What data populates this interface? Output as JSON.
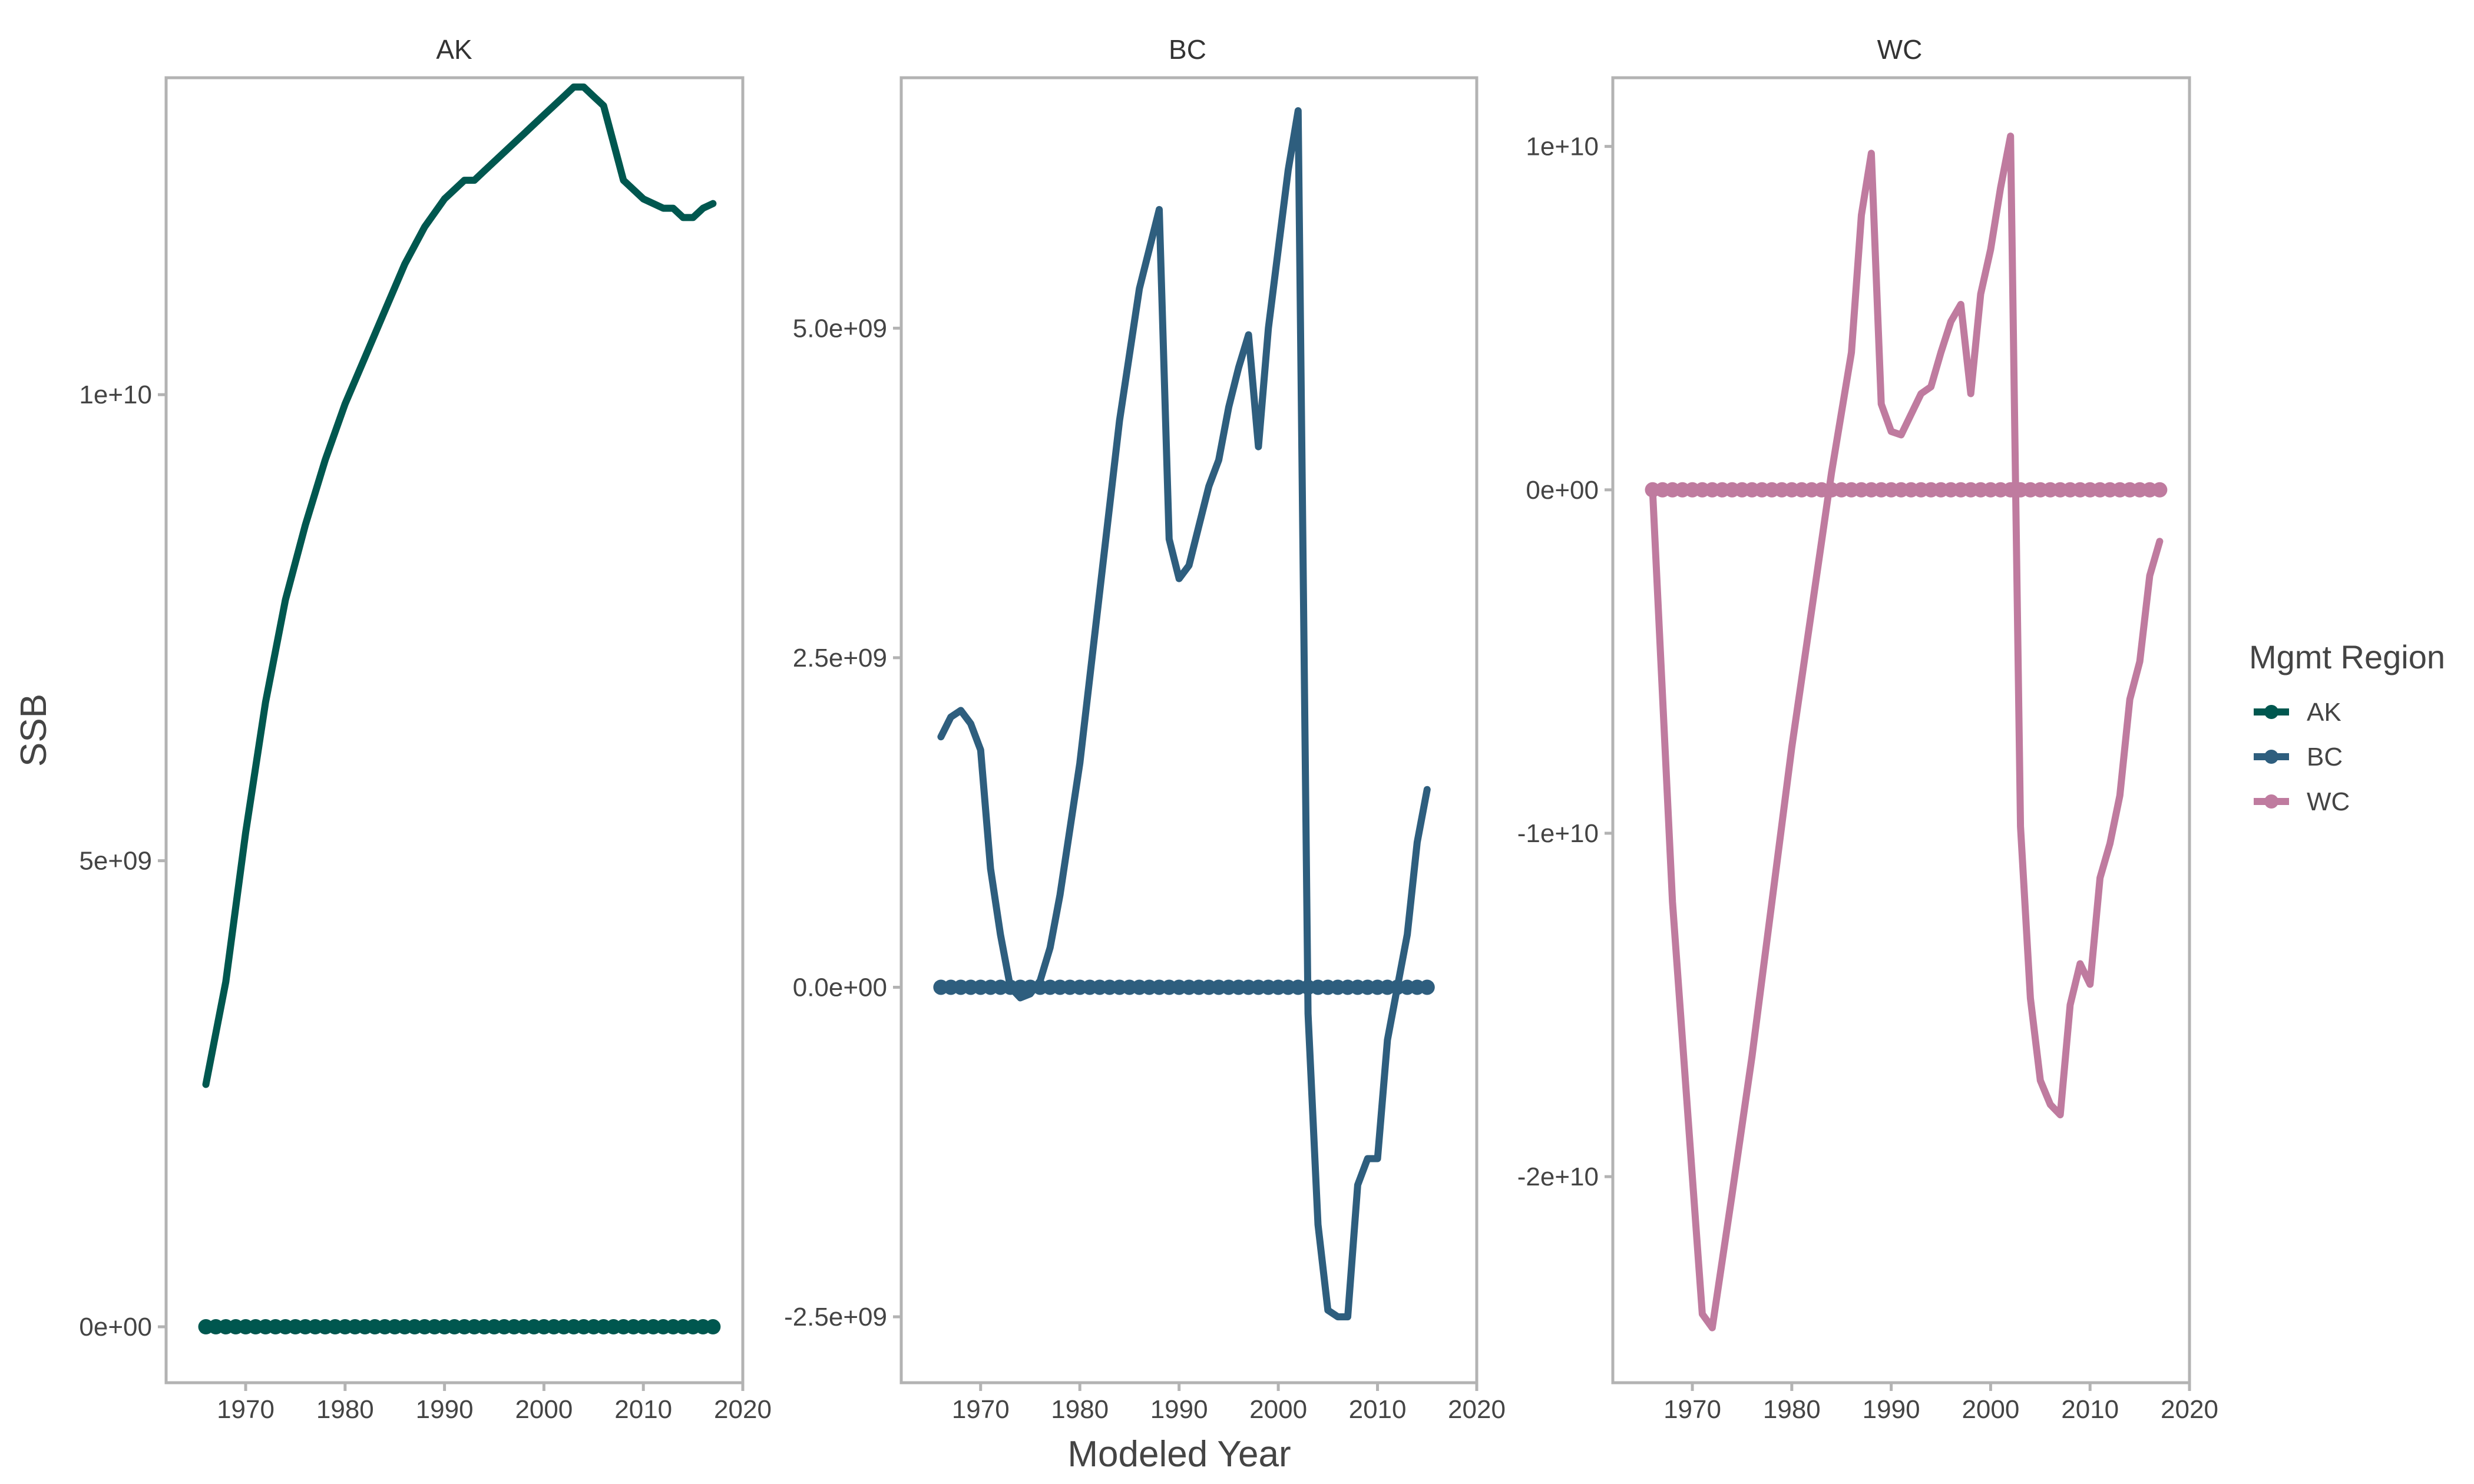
{
  "chart_data": {
    "type": "line",
    "xlabel": "Modeled Year",
    "ylabel": "SSB",
    "legend": {
      "title": "Mgmt Region",
      "position": "right",
      "entries": [
        "AK",
        "BC",
        "WC"
      ]
    },
    "colors": {
      "AK": "#00574f",
      "BC": "#2e5e7e",
      "WC": "#bf7b9f",
      "frame": "#b3b3b3"
    },
    "grid": false,
    "xlim": [
      1962,
      2020
    ],
    "xticks": [
      1970,
      1980,
      1990,
      2000,
      2010,
      2020
    ],
    "panels": [
      {
        "name": "AK",
        "ylim": [
          -600000000,
          13400000000
        ],
        "yticks": [
          0,
          5000000000,
          10000000000
        ],
        "ytick_labels": [
          "0e+00",
          "5e+09",
          "1e+10"
        ],
        "line": {
          "x": [
            1966,
            1968,
            1970,
            1972,
            1974,
            1976,
            1978,
            1980,
            1982,
            1984,
            1986,
            1988,
            1990,
            1992,
            1993,
            1994,
            1996,
            1998,
            2000,
            2002,
            2003,
            2004,
            2005,
            2006,
            2007,
            2008,
            2010,
            2012,
            2013,
            2014,
            2015,
            2016,
            2017
          ],
          "y": [
            2600000000,
            3700000000,
            5300000000,
            6700000000,
            7800000000,
            8600000000,
            9300000000,
            9900000000,
            10400000000,
            10900000000,
            11400000000,
            11800000000,
            12100000000,
            12300000000,
            12300000000,
            12400000000,
            12600000000,
            12800000000,
            13000000000,
            13200000000,
            13300000000,
            13300000000,
            13200000000,
            13100000000,
            12700000000,
            12300000000,
            12100000000,
            12000000000,
            12000000000,
            11900000000,
            11900000000,
            12000000000,
            12050000000
          ]
        },
        "points": {
          "x_start": 1966,
          "x_end": 2017,
          "y": 0
        }
      },
      {
        "name": "BC",
        "ylim": [
          -3000000000,
          6900000000
        ],
        "yticks": [
          -2500000000,
          0,
          2500000000,
          5000000000
        ],
        "ytick_labels": [
          "-2.5e+09",
          "0.0e+00",
          "2.5e+09",
          "5.0e+09"
        ],
        "line": {
          "x": [
            1966,
            1967,
            1968,
            1969,
            1970,
            1971,
            1972,
            1973,
            1974,
            1975,
            1976,
            1977,
            1978,
            1980,
            1982,
            1984,
            1986,
            1988,
            1989,
            1990,
            1991,
            1992,
            1993,
            1994,
            1995,
            1996,
            1997,
            1998,
            1999,
            2000,
            2001,
            2002,
            2003,
            2004,
            2005,
            2006,
            2007,
            2008,
            2009,
            2010,
            2011,
            2012,
            2013,
            2014,
            2015
          ],
          "y": [
            1900000000,
            2050000000,
            2100000000,
            2000000000,
            1800000000,
            900000000,
            400000000,
            0,
            -80000000,
            -50000000,
            50000000,
            300000000,
            700000000,
            1700000000,
            3000000000,
            4300000000,
            5300000000,
            5900000000,
            3400000000,
            3100000000,
            3200000000,
            3500000000,
            3800000000,
            4000000000,
            4400000000,
            4700000000,
            4950000000,
            4100000000,
            5000000000,
            5600000000,
            6200000000,
            6650000000,
            -200000000,
            -1800000000,
            -2450000000,
            -2500000000,
            -2500000000,
            -1500000000,
            -1300000000,
            -1300000000,
            -400000000,
            0,
            400000000,
            1100000000,
            1500000000
          ]
        },
        "points": {
          "x_start": 1966,
          "x_end": 2015,
          "y": 0
        }
      },
      {
        "name": "WC",
        "ylim": [
          -26000000000,
          12000000000
        ],
        "yticks": [
          -20000000000,
          -10000000000,
          0,
          10000000000
        ],
        "ytick_labels": [
          "-2e+10",
          "-1e+10",
          "0e+00",
          "1e+10"
        ],
        "line": {
          "x": [
            1966,
            1968,
            1970,
            1971,
            1972,
            1974,
            1976,
            1978,
            1980,
            1982,
            1984,
            1986,
            1987,
            1988,
            1989,
            1990,
            1991,
            1993,
            1994,
            1995,
            1996,
            1997,
            1998,
            1999,
            2000,
            2001,
            2002,
            2003,
            2004,
            2005,
            2006,
            2007,
            2008,
            2009,
            2010,
            2011,
            2012,
            2013,
            2014,
            2015,
            2016,
            2017
          ],
          "y": [
            0,
            -12000000000,
            -20000000000,
            -24000000000,
            -24400000000,
            -20500000000,
            -16500000000,
            -12000000000,
            -7500000000,
            -3500000000,
            500000000,
            4000000000,
            8000000000,
            9800000000,
            2500000000,
            1700000000,
            1600000000,
            2800000000,
            3000000000,
            4000000000,
            4900000000,
            5400000000,
            2800000000,
            5700000000,
            7000000000,
            8800000000,
            10300000000,
            -9800000000,
            -14800000000,
            -17200000000,
            -17900000000,
            -18200000000,
            -15000000000,
            -13800000000,
            -14400000000,
            -11300000000,
            -10300000000,
            -8900000000,
            -6100000000,
            -5000000000,
            -2500000000,
            -1500000000
          ]
        },
        "points": {
          "x_start": 1966,
          "x_end": 2017,
          "y": 0
        }
      }
    ]
  }
}
